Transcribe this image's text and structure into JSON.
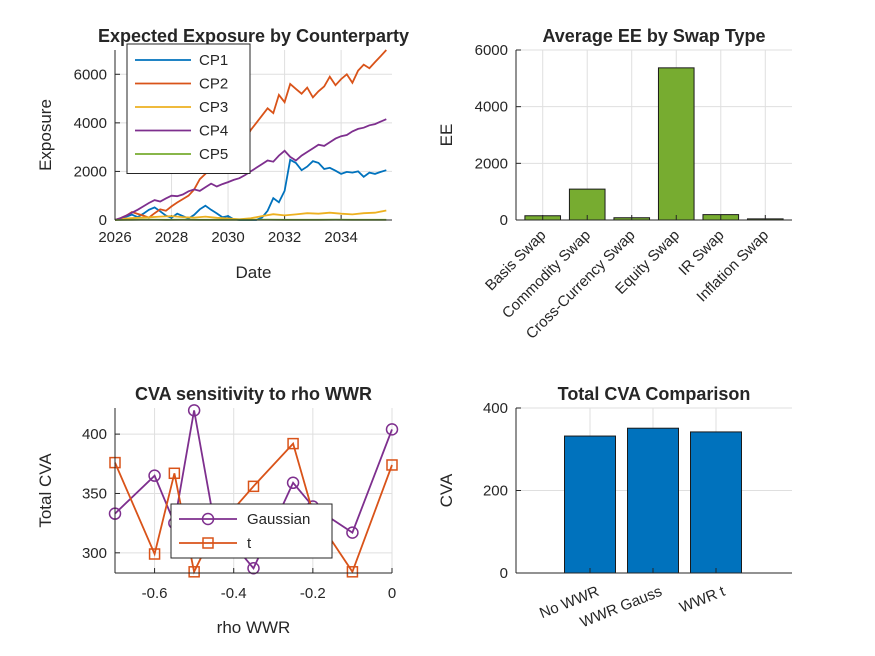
{
  "chart_data": [
    {
      "type": "line",
      "title": "Expected Exposure by Counterparty",
      "xlabel": "Date",
      "ylabel": "Exposure",
      "xlim": [
        2026,
        2035.8
      ],
      "ylim": [
        0,
        7000
      ],
      "xticks": [
        2026,
        2028,
        2030,
        2032,
        2034
      ],
      "yticks": [
        0,
        2000,
        4000,
        6000
      ],
      "legend_position": "top-left",
      "grid": true,
      "series": [
        {
          "name": "CP1",
          "color": "#0072BD",
          "points": [
            [
              2026.0,
              0
            ],
            [
              2026.2,
              60
            ],
            [
              2026.4,
              140
            ],
            [
              2026.6,
              220
            ],
            [
              2026.8,
              120
            ],
            [
              2027.0,
              260
            ],
            [
              2027.2,
              420
            ],
            [
              2027.4,
              520
            ],
            [
              2027.6,
              360
            ],
            [
              2027.8,
              180
            ],
            [
              2028.0,
              90
            ],
            [
              2028.2,
              260
            ],
            [
              2028.4,
              160
            ],
            [
              2028.6,
              60
            ],
            [
              2028.8,
              210
            ],
            [
              2029.0,
              440
            ],
            [
              2029.2,
              590
            ],
            [
              2029.4,
              420
            ],
            [
              2029.6,
              270
            ],
            [
              2029.8,
              110
            ],
            [
              2030.0,
              160
            ],
            [
              2030.2,
              30
            ],
            [
              2030.4,
              0
            ],
            [
              2030.6,
              0
            ],
            [
              2030.8,
              0
            ],
            [
              2031.0,
              0
            ],
            [
              2031.2,
              100
            ],
            [
              2031.4,
              380
            ],
            [
              2031.6,
              900
            ],
            [
              2031.8,
              730
            ],
            [
              2032.0,
              1200
            ],
            [
              2032.2,
              2480
            ],
            [
              2032.4,
              2350
            ],
            [
              2032.6,
              2050
            ],
            [
              2032.8,
              2200
            ],
            [
              2033.0,
              2420
            ],
            [
              2033.2,
              2350
            ],
            [
              2033.4,
              2100
            ],
            [
              2033.6,
              2150
            ],
            [
              2033.8,
              2030
            ],
            [
              2034.0,
              1900
            ],
            [
              2034.2,
              1980
            ],
            [
              2034.4,
              1950
            ],
            [
              2034.6,
              2000
            ],
            [
              2034.8,
              1780
            ],
            [
              2035.0,
              1950
            ],
            [
              2035.2,
              1900
            ],
            [
              2035.4,
              1980
            ],
            [
              2035.6,
              2050
            ]
          ]
        },
        {
          "name": "CP2",
          "color": "#D95319",
          "points": [
            [
              2026.0,
              0
            ],
            [
              2026.2,
              80
            ],
            [
              2026.4,
              180
            ],
            [
              2026.6,
              330
            ],
            [
              2026.8,
              250
            ],
            [
              2027.0,
              180
            ],
            [
              2027.2,
              100
            ],
            [
              2027.4,
              280
            ],
            [
              2027.6,
              440
            ],
            [
              2027.8,
              380
            ],
            [
              2028.0,
              560
            ],
            [
              2028.2,
              720
            ],
            [
              2028.4,
              860
            ],
            [
              2028.6,
              1000
            ],
            [
              2028.8,
              1250
            ],
            [
              2029.0,
              1680
            ],
            [
              2029.2,
              1900
            ],
            [
              2029.4,
              2150
            ],
            [
              2029.6,
              2600
            ],
            [
              2029.8,
              2780
            ],
            [
              2030.0,
              3400
            ],
            [
              2030.2,
              3800
            ],
            [
              2030.4,
              3550
            ],
            [
              2030.6,
              3250
            ],
            [
              2030.8,
              3700
            ],
            [
              2031.0,
              4000
            ],
            [
              2031.2,
              4300
            ],
            [
              2031.4,
              4600
            ],
            [
              2031.6,
              4400
            ],
            [
              2031.8,
              5150
            ],
            [
              2032.0,
              4850
            ],
            [
              2032.2,
              5600
            ],
            [
              2032.4,
              5400
            ],
            [
              2032.6,
              5200
            ],
            [
              2032.8,
              5450
            ],
            [
              2033.0,
              5050
            ],
            [
              2033.2,
              5300
            ],
            [
              2033.4,
              5500
            ],
            [
              2033.6,
              5900
            ],
            [
              2033.8,
              5550
            ],
            [
              2034.0,
              5800
            ],
            [
              2034.2,
              6000
            ],
            [
              2034.4,
              5650
            ],
            [
              2034.6,
              6150
            ],
            [
              2034.8,
              6400
            ],
            [
              2035.0,
              6250
            ],
            [
              2035.2,
              6500
            ],
            [
              2035.4,
              6750
            ],
            [
              2035.6,
              7000
            ]
          ]
        },
        {
          "name": "CP3",
          "color": "#EDB120",
          "points": [
            [
              2026.0,
              0
            ],
            [
              2026.4,
              60
            ],
            [
              2026.8,
              90
            ],
            [
              2027.2,
              110
            ],
            [
              2027.6,
              140
            ],
            [
              2028.0,
              160
            ],
            [
              2028.4,
              120
            ],
            [
              2028.8,
              100
            ],
            [
              2029.2,
              140
            ],
            [
              2029.6,
              90
            ],
            [
              2030.0,
              60
            ],
            [
              2030.4,
              30
            ],
            [
              2030.8,
              70
            ],
            [
              2031.2,
              160
            ],
            [
              2031.6,
              240
            ],
            [
              2032.0,
              190
            ],
            [
              2032.4,
              230
            ],
            [
              2032.8,
              280
            ],
            [
              2033.2,
              260
            ],
            [
              2033.6,
              300
            ],
            [
              2034.0,
              260
            ],
            [
              2034.4,
              230
            ],
            [
              2034.8,
              280
            ],
            [
              2035.2,
              300
            ],
            [
              2035.6,
              390
            ]
          ]
        },
        {
          "name": "CP4",
          "color": "#7E2F8E",
          "points": [
            [
              2026.0,
              0
            ],
            [
              2026.2,
              80
            ],
            [
              2026.4,
              180
            ],
            [
              2026.6,
              300
            ],
            [
              2026.8,
              420
            ],
            [
              2027.0,
              560
            ],
            [
              2027.2,
              700
            ],
            [
              2027.4,
              820
            ],
            [
              2027.6,
              760
            ],
            [
              2027.8,
              890
            ],
            [
              2028.0,
              1000
            ],
            [
              2028.2,
              980
            ],
            [
              2028.4,
              1050
            ],
            [
              2028.6,
              1180
            ],
            [
              2028.8,
              1260
            ],
            [
              2029.0,
              1200
            ],
            [
              2029.2,
              1350
            ],
            [
              2029.4,
              1500
            ],
            [
              2029.6,
              1380
            ],
            [
              2029.8,
              1480
            ],
            [
              2030.0,
              1560
            ],
            [
              2030.2,
              1650
            ],
            [
              2030.4,
              1720
            ],
            [
              2030.6,
              1850
            ],
            [
              2030.8,
              2000
            ],
            [
              2031.0,
              2150
            ],
            [
              2031.2,
              2300
            ],
            [
              2031.4,
              2450
            ],
            [
              2031.6,
              2400
            ],
            [
              2031.8,
              2650
            ],
            [
              2032.0,
              2850
            ],
            [
              2032.2,
              2600
            ],
            [
              2032.4,
              2450
            ],
            [
              2032.6,
              2650
            ],
            [
              2032.8,
              2800
            ],
            [
              2033.0,
              2950
            ],
            [
              2033.2,
              3100
            ],
            [
              2033.4,
              3050
            ],
            [
              2033.6,
              3200
            ],
            [
              2033.8,
              3350
            ],
            [
              2034.0,
              3450
            ],
            [
              2034.2,
              3500
            ],
            [
              2034.4,
              3650
            ],
            [
              2034.6,
              3750
            ],
            [
              2034.8,
              3800
            ],
            [
              2035.0,
              3900
            ],
            [
              2035.2,
              3950
            ],
            [
              2035.4,
              4050
            ],
            [
              2035.6,
              4150
            ]
          ]
        },
        {
          "name": "CP5",
          "color": "#77AC30",
          "points": [
            [
              2026.0,
              0
            ],
            [
              2026.6,
              10
            ],
            [
              2027.2,
              15
            ],
            [
              2027.8,
              10
            ],
            [
              2028.4,
              12
            ],
            [
              2029.0,
              8
            ],
            [
              2029.6,
              10
            ],
            [
              2030.2,
              8
            ],
            [
              2030.8,
              10
            ],
            [
              2031.4,
              12
            ],
            [
              2032.0,
              10
            ],
            [
              2032.6,
              8
            ],
            [
              2033.2,
              10
            ],
            [
              2033.8,
              12
            ],
            [
              2034.4,
              10
            ],
            [
              2035.0,
              10
            ],
            [
              2035.6,
              10
            ]
          ]
        }
      ]
    },
    {
      "type": "bar",
      "title": "Average EE by Swap Type",
      "xlabel": "",
      "ylabel": "EE",
      "ylim": [
        0,
        6000
      ],
      "yticks": [
        0,
        2000,
        4000,
        6000
      ],
      "grid": true,
      "color": "#77AC30",
      "categories": [
        "Basis Swap",
        "Commodity Swap",
        "Cross-Currency Swap",
        "Equity Swap",
        "IR Swap",
        "Inflation Swap"
      ],
      "values": [
        150,
        1090,
        80,
        5370,
        190,
        40
      ]
    },
    {
      "type": "line",
      "title": "CVA sensitivity to rho WWR",
      "xlabel": "rho WWR",
      "ylabel": "Total CVA",
      "xlim": [
        -0.7,
        0
      ],
      "ylim": [
        283,
        422
      ],
      "xticks": [
        -0.6,
        -0.4,
        -0.2,
        0
      ],
      "xtick_labels": [
        "-0.6",
        "-0.4",
        "-0.2",
        "0"
      ],
      "yticks": [
        300,
        350,
        400
      ],
      "legend_position": "bottom-center",
      "grid": true,
      "series": [
        {
          "name": "Gaussian",
          "color": "#7E2F8E",
          "marker": "circle",
          "x": [
            -0.7,
            -0.6,
            -0.55,
            -0.5,
            -0.45,
            -0.35,
            -0.25,
            -0.2,
            -0.1,
            0
          ],
          "y": [
            333,
            365,
            325,
            420,
            327,
            287,
            359,
            339,
            317,
            404
          ]
        },
        {
          "name": "t",
          "color": "#D95319",
          "marker": "square",
          "x": [
            -0.7,
            -0.6,
            -0.55,
            -0.5,
            -0.45,
            -0.35,
            -0.25,
            -0.2,
            -0.1,
            0
          ],
          "y": [
            376,
            299,
            367,
            284,
            318,
            356,
            392,
            334,
            284,
            374
          ]
        }
      ]
    },
    {
      "type": "bar",
      "title": "Total CVA Comparison",
      "xlabel": "",
      "ylabel": "CVA",
      "ylim": [
        0,
        400
      ],
      "yticks": [
        0,
        200,
        400
      ],
      "grid": true,
      "color": "#0072BD",
      "categories": [
        "No WWR",
        "WWR Gauss",
        "WWR t"
      ],
      "values": [
        332,
        351,
        342
      ]
    }
  ]
}
